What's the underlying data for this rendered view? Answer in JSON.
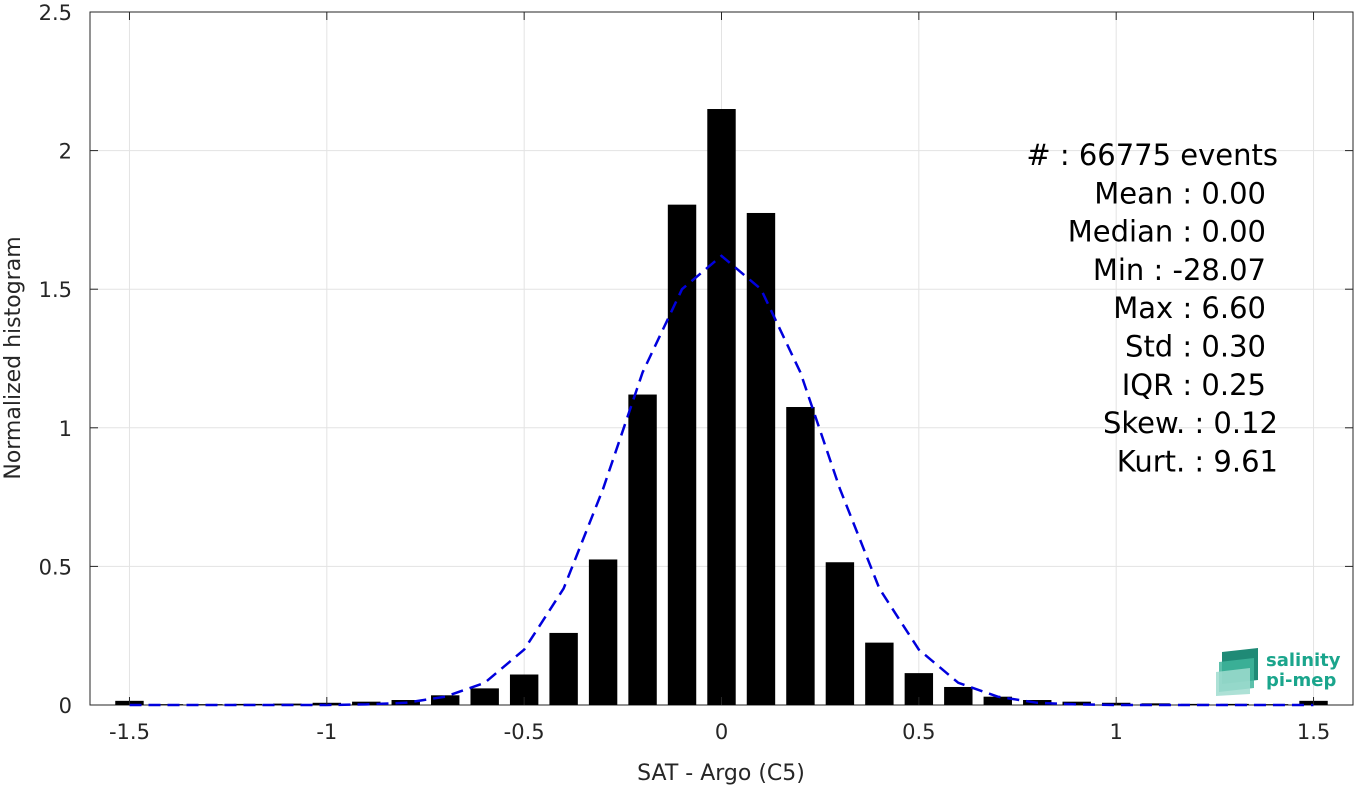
{
  "chart_data": {
    "type": "bar",
    "xlabel": "SAT - Argo (C5)",
    "ylabel": "Normalized histogram",
    "xlim": [
      -1.6,
      1.6
    ],
    "ylim": [
      0,
      2.5
    ],
    "xticks": [
      -1.5,
      -1,
      -0.5,
      0,
      0.5,
      1,
      1.5
    ],
    "xtick_labels": [
      "-1.5",
      "-1",
      "-0.5",
      "0",
      "0.5",
      "1",
      "1.5"
    ],
    "yticks": [
      0,
      0.5,
      1,
      1.5,
      2,
      2.5
    ],
    "ytick_labels": [
      "0",
      "0.5",
      "1",
      "1.5",
      "2",
      "2.5"
    ],
    "grid": true,
    "bar_color": "#000000",
    "bars": {
      "x": [
        -1.5,
        -1.4,
        -1.3,
        -1.2,
        -1.1,
        -1.0,
        -0.9,
        -0.8,
        -0.7,
        -0.6,
        -0.5,
        -0.4,
        -0.3,
        -0.2,
        -0.1,
        0.0,
        0.1,
        0.2,
        0.3,
        0.4,
        0.5,
        0.6,
        0.7,
        0.8,
        0.9,
        1.0,
        1.1,
        1.2,
        1.3,
        1.4,
        1.5
      ],
      "values": [
        0.015,
        0.003,
        0.003,
        0.004,
        0.005,
        0.008,
        0.012,
        0.018,
        0.035,
        0.06,
        0.11,
        0.26,
        0.525,
        1.12,
        1.805,
        2.15,
        1.775,
        1.075,
        0.515,
        0.225,
        0.115,
        0.065,
        0.03,
        0.018,
        0.012,
        0.008,
        0.006,
        0.004,
        0.004,
        0.003,
        0.015
      ]
    },
    "fit_curve": {
      "style": "dashed",
      "color": "#0000dd",
      "x": [
        -1.5,
        -1.4,
        -1.3,
        -1.2,
        -1.1,
        -1.0,
        -0.9,
        -0.8,
        -0.7,
        -0.6,
        -0.5,
        -0.4,
        -0.3,
        -0.2,
        -0.1,
        0.0,
        0.1,
        0.2,
        0.3,
        0.4,
        0.5,
        0.6,
        0.7,
        0.8,
        0.9,
        1.0,
        1.1,
        1.2,
        1.3,
        1.4,
        1.5
      ],
      "values": [
        0.0,
        0.0,
        0.0,
        0.0,
        0.0,
        0.0,
        0.002,
        0.008,
        0.03,
        0.08,
        0.2,
        0.42,
        0.78,
        1.2,
        1.5,
        1.62,
        1.5,
        1.2,
        0.78,
        0.42,
        0.2,
        0.08,
        0.03,
        0.008,
        0.002,
        0.0,
        0.0,
        0.0,
        0.0,
        0.0,
        0.0
      ]
    },
    "annotations": [
      "#  : 66775 events",
      "Mean : 0.00",
      "Median : 0.00",
      "Min : -28.07",
      "Max : 6.60",
      "Std : 0.30",
      "IQR : 0.25",
      "Skew. : 0.12",
      "Kurt. : 9.61"
    ]
  },
  "logo": {
    "line1": "salinity",
    "line2": "pi-mep",
    "color": "#1aa58c"
  }
}
